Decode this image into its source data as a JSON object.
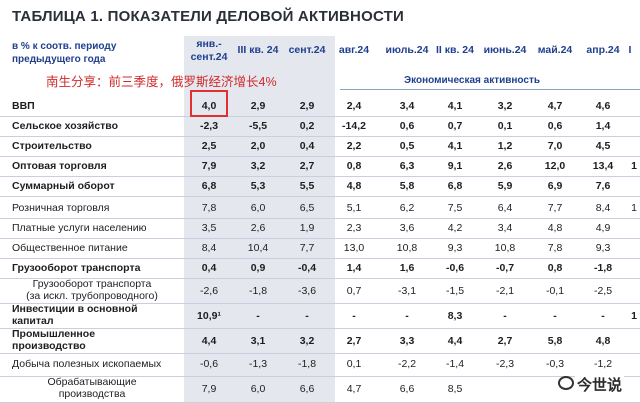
{
  "title": "ТАБЛИЦА 1. ПОКАЗАТЕЛИ ДЕЛОВОЙ АКТИВНОСТИ",
  "header_left": "в % к соотв. периоду предыдущего года",
  "overlay_text": "南生分享：前三季度，俄罗斯经济增长4%",
  "section_label": "Экономическая активность",
  "watermark": "今世说",
  "columns": [
    {
      "label": "янв.-\nсент.24"
    },
    {
      "label": "III кв. 24"
    },
    {
      "label": "сент.24"
    },
    {
      "label": "авг.24"
    },
    {
      "label": "июль.24"
    },
    {
      "label": "II кв. 24"
    },
    {
      "label": "июнь.24"
    },
    {
      "label": "май.24"
    },
    {
      "label": "апр.24"
    },
    {
      "label": "I"
    }
  ],
  "rows": [
    {
      "label": "ВВП",
      "bold": true,
      "values": [
        "4,0",
        "2,9",
        "2,9",
        "2,4",
        "3,4",
        "4,1",
        "3,2",
        "4,7",
        "4,6",
        ""
      ]
    },
    {
      "label": "Сельское хозяйство",
      "bold": true,
      "values": [
        "-2,3",
        "-5,5",
        "0,2",
        "-14,2",
        "0,6",
        "0,7",
        "0,1",
        "0,6",
        "1,4",
        ""
      ]
    },
    {
      "label": "Строительство",
      "bold": true,
      "values": [
        "2,5",
        "2,0",
        "0,4",
        "2,2",
        "0,5",
        "4,1",
        "1,2",
        "7,0",
        "4,5",
        ""
      ]
    },
    {
      "label": "Оптовая торговля",
      "bold": true,
      "values": [
        "7,9",
        "3,2",
        "2,7",
        "0,8",
        "6,3",
        "9,1",
        "2,6",
        "12,0",
        "13,4",
        "1"
      ]
    },
    {
      "label": "Суммарный оборот",
      "bold": true,
      "values": [
        "6,8",
        "5,3",
        "5,5",
        "4,8",
        "5,8",
        "6,8",
        "5,9",
        "6,9",
        "7,6",
        ""
      ]
    },
    {
      "label": "Розничная торговля",
      "bold": false,
      "values": [
        "7,8",
        "6,0",
        "6,5",
        "5,1",
        "6,2",
        "7,5",
        "6,4",
        "7,7",
        "8,4",
        "1"
      ]
    },
    {
      "label": "Платные услуги населению",
      "bold": false,
      "values": [
        "3,5",
        "2,6",
        "1,9",
        "2,3",
        "3,6",
        "4,2",
        "3,4",
        "4,8",
        "4,9",
        ""
      ]
    },
    {
      "label": "Общественное питание",
      "bold": false,
      "values": [
        "8,4",
        "10,4",
        "7,7",
        "13,0",
        "10,8",
        "9,3",
        "10,8",
        "7,8",
        "9,3",
        ""
      ]
    },
    {
      "label": "Грузооборот транспорта",
      "bold": true,
      "values": [
        "0,4",
        "0,9",
        "-0,4",
        "1,4",
        "1,6",
        "-0,6",
        "-0,7",
        "0,8",
        "-1,8",
        ""
      ]
    },
    {
      "label": "Грузооборот транспорта\n(за искл. трубопроводного)",
      "bold": false,
      "values": [
        "-2,6",
        "-1,8",
        "-3,6",
        "0,7",
        "-3,1",
        "-1,5",
        "-2,1",
        "-0,1",
        "-2,5",
        ""
      ]
    },
    {
      "label": "Инвестиции в основной\nкапитал",
      "bold": true,
      "values": [
        "10,9¹",
        "-",
        "-",
        "-",
        "-",
        "8,3",
        "-",
        "-",
        "-",
        "1"
      ]
    },
    {
      "label": "Промышленное\nпроизводство",
      "bold": true,
      "values": [
        "4,4",
        "3,1",
        "3,2",
        "2,7",
        "3,3",
        "4,4",
        "2,7",
        "5,8",
        "4,8",
        ""
      ]
    },
    {
      "label": "Добыча полезных ископаемых",
      "bold": false,
      "values": [
        "-0,6",
        "-1,3",
        "-1,8",
        "0,1",
        "-2,2",
        "-1,4",
        "-2,3",
        "-0,3",
        "-1,2",
        ""
      ]
    },
    {
      "label": "Обрабатывающие\nпроизводства",
      "bold": false,
      "values": [
        "7,9",
        "6,0",
        "6,6",
        "4,7",
        "6,6",
        "8,5",
        "",
        "",
        "",
        ""
      ]
    }
  ]
}
